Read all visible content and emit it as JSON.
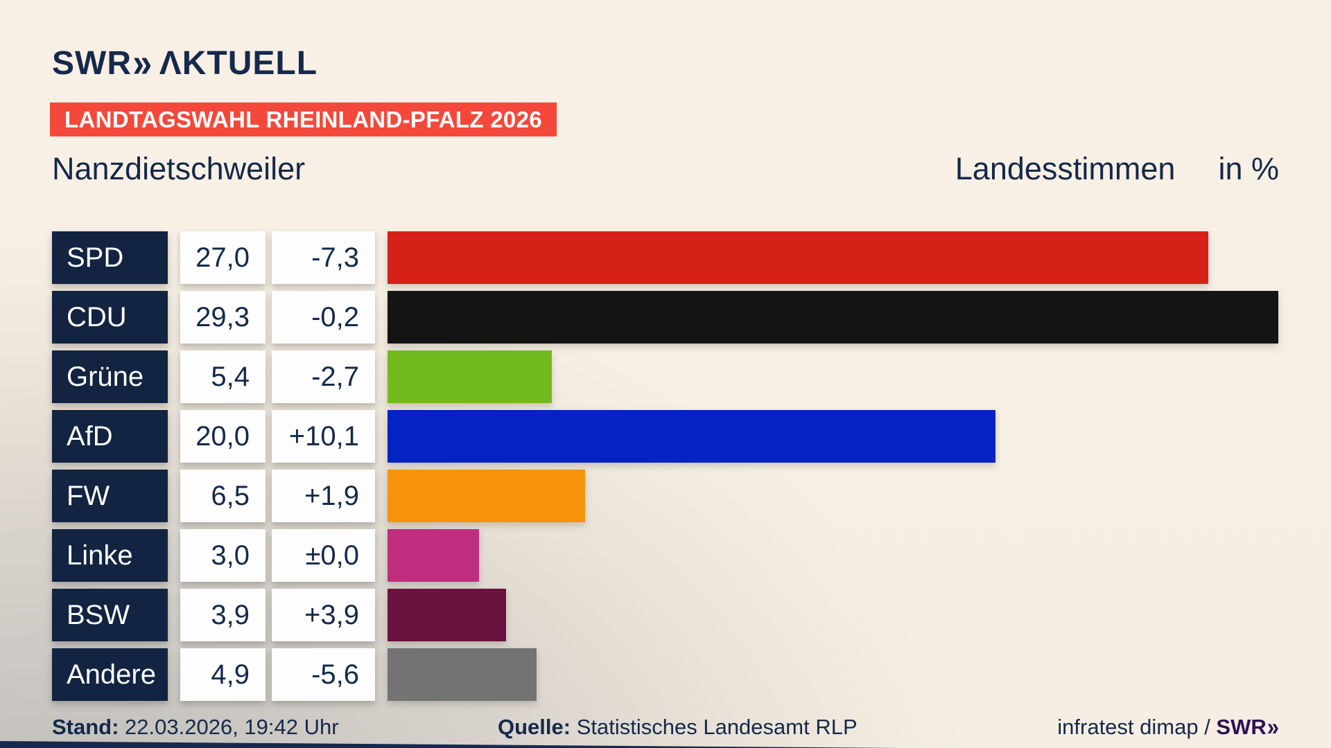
{
  "brand": {
    "logo_swr": "SWR",
    "logo_chevron": "»",
    "logo_suffix": "ΛKTUELL"
  },
  "header": {
    "banner": "LANDTAGSWAHL RHEINLAND-PFALZ 2026",
    "region": "Nanzdietschweiler",
    "measure": "Landesstimmen",
    "unit": "in %"
  },
  "chart_data": {
    "type": "bar",
    "orientation": "horizontal",
    "title": "Landesstimmen in %",
    "value_unit": "%",
    "xlim": [
      0,
      29.3
    ],
    "grid": false,
    "legend": "none",
    "categories": [
      "SPD",
      "CDU",
      "Grüne",
      "AfD",
      "FW",
      "Linke",
      "BSW",
      "Andere"
    ],
    "values": [
      27.0,
      29.3,
      5.4,
      20.0,
      6.5,
      3.0,
      3.9,
      4.9
    ],
    "changes": [
      -7.3,
      -0.2,
      -2.7,
      10.1,
      1.9,
      0.0,
      3.9,
      -5.6
    ],
    "bar_colors": [
      "#d62119",
      "#141414",
      "#72b91d",
      "#0423c3",
      "#f7920b",
      "#bf2e7e",
      "#6a1240",
      "#737373"
    ],
    "parties": [
      {
        "name": "SPD",
        "value": 27.0,
        "value_label": "27,0",
        "change_label": "-7,3",
        "color": "#d62119"
      },
      {
        "name": "CDU",
        "value": 29.3,
        "value_label": "29,3",
        "change_label": "-0,2",
        "color": "#141414"
      },
      {
        "name": "Grüne",
        "value": 5.4,
        "value_label": "5,4",
        "change_label": "-2,7",
        "color": "#72b91d"
      },
      {
        "name": "AfD",
        "value": 20.0,
        "value_label": "20,0",
        "change_label": "+10,1",
        "color": "#0423c3"
      },
      {
        "name": "FW",
        "value": 6.5,
        "value_label": "6,5",
        "change_label": "+1,9",
        "color": "#f7920b"
      },
      {
        "name": "Linke",
        "value": 3.0,
        "value_label": "3,0",
        "change_label": "±0,0",
        "color": "#bf2e7e"
      },
      {
        "name": "BSW",
        "value": 3.9,
        "value_label": "3,9",
        "change_label": "+3,9",
        "color": "#6a1240"
      },
      {
        "name": "Andere",
        "value": 4.9,
        "value_label": "4,9",
        "change_label": "-5,6",
        "color": "#737373"
      }
    ]
  },
  "footer": {
    "stand_label": "Stand:",
    "stand_value": " 22.03.2026, 19:42 Uhr",
    "source_label": "Quelle:",
    "source_value": " Statistisches Landesamt RLP",
    "credit": "infratest dimap / ",
    "credit_brand": "SWR",
    "credit_chevron": "»"
  },
  "colors": {
    "background_cream": "#f8f0e4",
    "background_gray": "#c5c2be",
    "navy": "#14294a",
    "label_box": "#122441",
    "value_box": "#fdfdfd",
    "banner_bg": "#f4483b",
    "banner_text": "#ffffff",
    "credit_brand": "#2f1156"
  }
}
